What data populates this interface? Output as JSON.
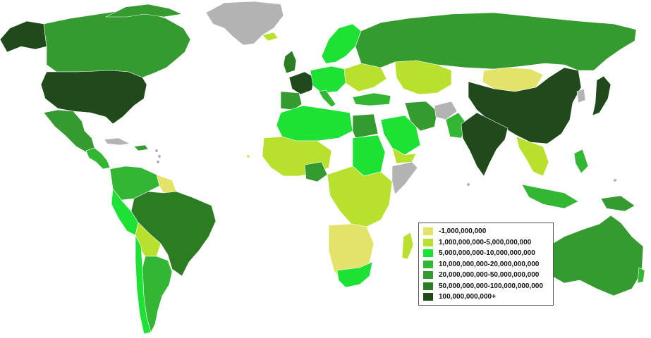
{
  "colors": {
    "ocean": "#ffffff",
    "no_data": "#b3b3b3",
    "border": "#ffffff"
  },
  "legend": {
    "items": [
      {
        "label": "-1,000,000,000",
        "color": "#e3e36a"
      },
      {
        "label": "1,000,000,000-5,000,000,000",
        "color": "#b8e12e"
      },
      {
        "label": "5,000,000,000-10,000,000,000",
        "color": "#1ee136"
      },
      {
        "label": "10,000,000,000-20,000,000,000",
        "color": "#33b633"
      },
      {
        "label": "20,000,000,000-50,000,000,000",
        "color": "#359a30"
      },
      {
        "label": "50,000,000,000-100,000,000,000",
        "color": "#2b7c22"
      },
      {
        "label": "100,000,000,000+",
        "color": "#204a1c"
      }
    ]
  }
}
